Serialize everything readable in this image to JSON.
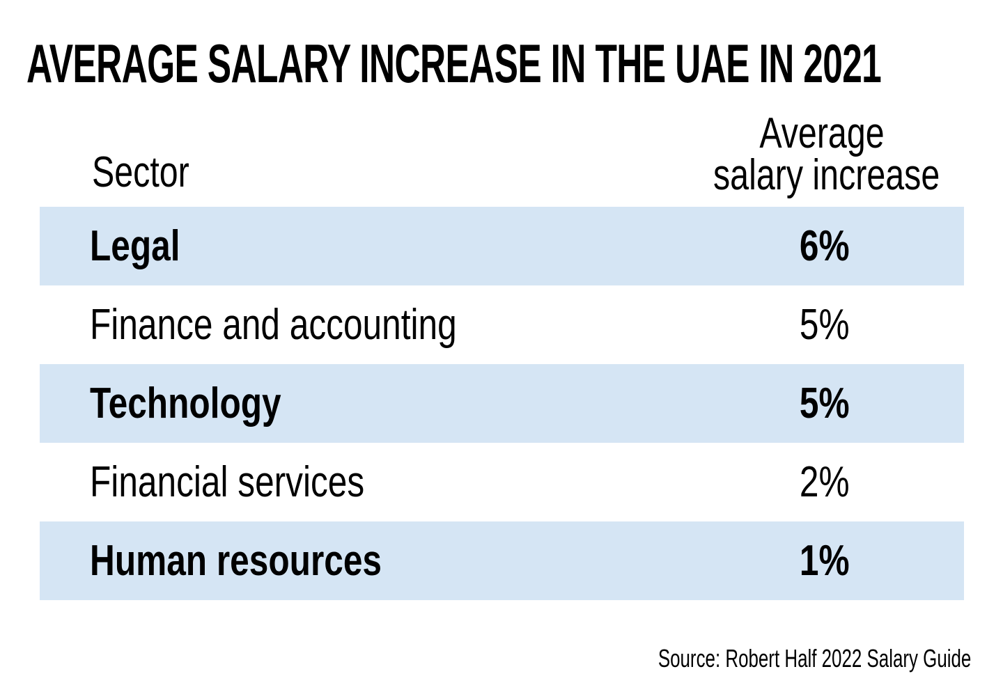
{
  "chart_data": {
    "type": "table",
    "title": "AVERAGE SALARY INCREASE IN THE UAE IN 2021",
    "columns": {
      "sector": "Sector",
      "value_line1": "Average",
      "value_line2": "salary increase"
    },
    "rows": [
      {
        "sector": "Legal",
        "value_label": "6%",
        "value": 6,
        "bold": true,
        "shaded": true
      },
      {
        "sector": "Finance and accounting",
        "value_label": "5%",
        "value": 5,
        "bold": false,
        "shaded": false
      },
      {
        "sector": "Technology",
        "value_label": "5%",
        "value": 5,
        "bold": true,
        "shaded": true
      },
      {
        "sector": "Financial services",
        "value_label": "2%",
        "value": 2,
        "bold": false,
        "shaded": false
      },
      {
        "sector": "Human resources",
        "value_label": "1%",
        "value": 1,
        "bold": true,
        "shaded": true
      }
    ],
    "source": "Source: Robert Half 2022 Salary Guide",
    "colors": {
      "row_shade": "#d5e5f4",
      "background": "#ffffff",
      "text": "#000000"
    }
  }
}
